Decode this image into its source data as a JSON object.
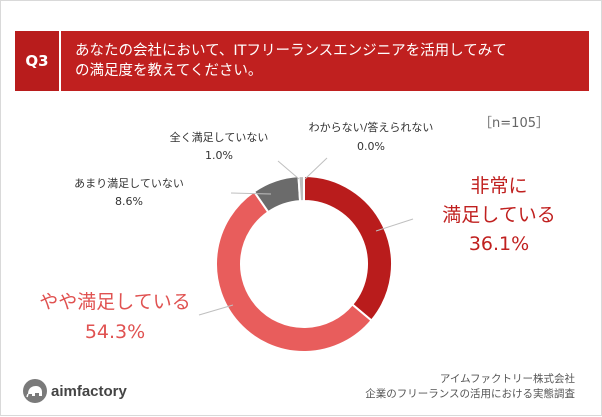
{
  "header": {
    "badge": "Q3",
    "question_line1": "あなたの会社において、ITフリーランスエンジニアを活用してみて",
    "question_line2": "の満足度を教えてください。"
  },
  "sample_size": "［n=105］",
  "colors": {
    "header_bg": "#c0201f",
    "badge_bg": "#b81c1c",
    "very_satisfied": "#b91c1c",
    "somewhat_satisfied": "#e85d5c",
    "not_very_satisfied": "#6b6b6b",
    "not_at_all": "#bdbdbd"
  },
  "chart_data": {
    "type": "pie",
    "style": "donut",
    "start": "top",
    "direction": "clockwise",
    "slices": [
      {
        "label_line1": "非常に",
        "label_line2": "満足している",
        "value": 36.1,
        "value_text": "36.1%",
        "color": "#b91c1c"
      },
      {
        "label_line1": "",
        "label_line2": "やや満足している",
        "value": 54.3,
        "value_text": "54.3%",
        "color": "#e85d5c"
      },
      {
        "label_line1": "",
        "label_line2": "あまり満足していない",
        "value": 8.6,
        "value_text": "8.6%",
        "color": "#6b6b6b"
      },
      {
        "label_line1": "",
        "label_line2": "全く満足していない",
        "value": 1.0,
        "value_text": "1.0%",
        "color": "#bdbdbd"
      },
      {
        "label_line1": "",
        "label_line2": "わからない/答えられない",
        "value": 0.0,
        "value_text": "0.0%",
        "color": "#dddddd"
      }
    ]
  },
  "footer": {
    "logo_text": "aimfactory",
    "company": "アイムファクトリー株式会社",
    "survey": "企業のフリーランスの活用における実態調査"
  }
}
